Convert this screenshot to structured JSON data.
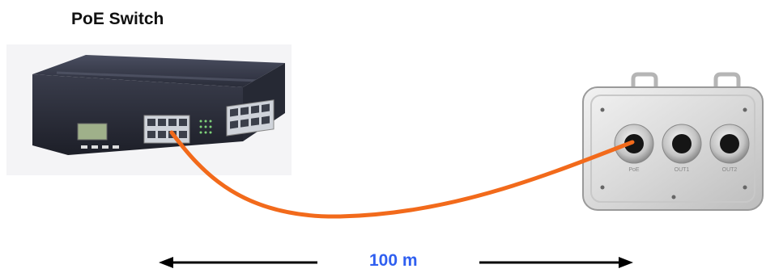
{
  "diagram": {
    "title": "PoE Switch",
    "distance_label": "100 m",
    "cable_color": "#f26a1b",
    "label_color": "#2f5ff0",
    "devices": [
      {
        "name": "switch",
        "icon": "poe-switch-icon"
      },
      {
        "name": "enclosure",
        "icon": "outdoor-enclosure-icon",
        "port_labels": [
          "PoE",
          "OUT1",
          "OUT2"
        ]
      }
    ]
  }
}
